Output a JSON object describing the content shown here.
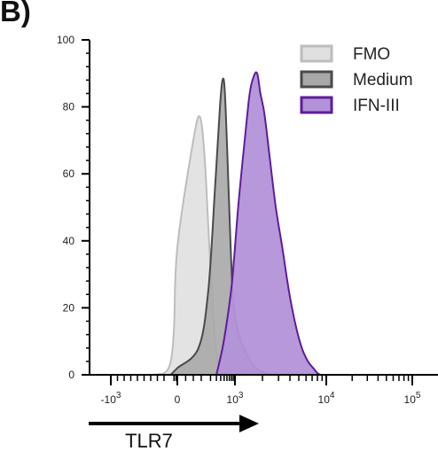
{
  "panel_label": "B)",
  "chart_data": {
    "type": "area",
    "title": "",
    "xlabel": "TLR7",
    "ylabel": "",
    "xscale": "biexponential",
    "ylim": [
      0,
      100
    ],
    "yticks": [
      0,
      20,
      40,
      60,
      80,
      100
    ],
    "xticks": [
      {
        "value": -1000,
        "base": "-10",
        "exp": "3"
      },
      {
        "value": 0,
        "base": "0",
        "exp": ""
      },
      {
        "value": 1000,
        "base": "10",
        "exp": "3"
      },
      {
        "value": 10000,
        "base": "10",
        "exp": "4"
      },
      {
        "value": 100000,
        "base": "10",
        "exp": "5"
      }
    ],
    "legend_position": "top-right",
    "grid": false,
    "series": [
      {
        "name": "FMO",
        "fill": "#e0e0e0",
        "stroke": "#bdbdbd",
        "points": [
          [
            -400,
            0
          ],
          [
            -200,
            0.5
          ],
          [
            -100,
            4
          ],
          [
            -50,
            14
          ],
          [
            0,
            38
          ],
          [
            50,
            70
          ],
          [
            90,
            77
          ],
          [
            130,
            65
          ],
          [
            180,
            40
          ],
          [
            240,
            18
          ],
          [
            300,
            6
          ],
          [
            380,
            1
          ],
          [
            450,
            0
          ]
        ]
      },
      {
        "name": "Medium",
        "fill": "#a8a8a8",
        "stroke": "#4a4a4a",
        "points": [
          [
            -100,
            0
          ],
          [
            0,
            2
          ],
          [
            80,
            8
          ],
          [
            170,
            25
          ],
          [
            270,
            55
          ],
          [
            380,
            80
          ],
          [
            450,
            88
          ],
          [
            520,
            85
          ],
          [
            620,
            65
          ],
          [
            750,
            40
          ],
          [
            900,
            22
          ],
          [
            1100,
            12
          ],
          [
            1350,
            6
          ],
          [
            1700,
            2
          ],
          [
            2200,
            0.5
          ],
          [
            2600,
            0
          ]
        ]
      },
      {
        "name": "IFN-III",
        "fill": "#b292d9",
        "stroke": "#5e1d99",
        "points": [
          [
            300,
            0
          ],
          [
            450,
            8
          ],
          [
            600,
            16
          ],
          [
            800,
            26
          ],
          [
            950,
            35
          ],
          [
            1100,
            52
          ],
          [
            1300,
            72
          ],
          [
            1450,
            84
          ],
          [
            1600,
            89
          ],
          [
            1750,
            90
          ],
          [
            1900,
            84
          ],
          [
            2100,
            78
          ],
          [
            2400,
            65
          ],
          [
            2800,
            50
          ],
          [
            3300,
            38
          ],
          [
            3900,
            25
          ],
          [
            4600,
            15
          ],
          [
            5400,
            8
          ],
          [
            6300,
            4
          ],
          [
            7200,
            2
          ],
          [
            8000,
            0.5
          ],
          [
            8600,
            0
          ]
        ]
      }
    ]
  }
}
